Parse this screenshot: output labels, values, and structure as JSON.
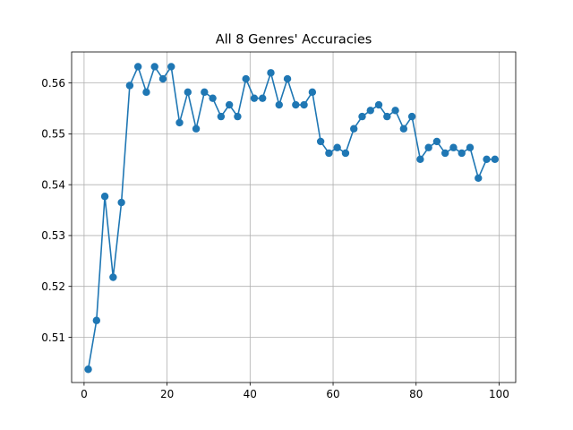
{
  "chart_data": {
    "type": "line",
    "title": "All 8 Genres' Accuracies",
    "xlabel": "",
    "ylabel": "",
    "xlim": [
      -3,
      104
    ],
    "ylim": [
      0.5011,
      0.5661
    ],
    "xticks": [
      0,
      20,
      40,
      60,
      80,
      100
    ],
    "xtick_labels": [
      "0",
      "20",
      "40",
      "60",
      "80",
      "100"
    ],
    "yticks": [
      0.51,
      0.52,
      0.53,
      0.54,
      0.55,
      0.56
    ],
    "ytick_labels": [
      "0.51",
      "0.52",
      "0.53",
      "0.54",
      "0.55",
      "0.56"
    ],
    "grid": true,
    "series": [
      {
        "color": "#1f77b4",
        "marker": "circle",
        "x": [
          1,
          3,
          5,
          7,
          9,
          11,
          13,
          15,
          17,
          19,
          21,
          23,
          25,
          27,
          29,
          31,
          33,
          35,
          37,
          39,
          41,
          43,
          45,
          47,
          49,
          51,
          53,
          55,
          57,
          59,
          61,
          63,
          65,
          67,
          69,
          71,
          73,
          75,
          77,
          79,
          81,
          83,
          85,
          87,
          89,
          91,
          93,
          95,
          97,
          99
        ],
        "values": [
          0.5037,
          0.5133,
          0.5377,
          0.5218,
          0.5365,
          0.5595,
          0.5632,
          0.5582,
          0.5632,
          0.5608,
          0.5632,
          0.5522,
          0.5582,
          0.551,
          0.5582,
          0.557,
          0.5534,
          0.5557,
          0.5534,
          0.5608,
          0.557,
          0.557,
          0.562,
          0.5557,
          0.5608,
          0.5557,
          0.5557,
          0.5582,
          0.5485,
          0.5462,
          0.5473,
          0.5462,
          0.551,
          0.5534,
          0.5546,
          0.5557,
          0.5534,
          0.5546,
          0.551,
          0.5534,
          0.545,
          0.5473,
          0.5485,
          0.5462,
          0.5473,
          0.5462,
          0.5473,
          0.5413,
          0.545,
          0.545
        ]
      }
    ]
  }
}
